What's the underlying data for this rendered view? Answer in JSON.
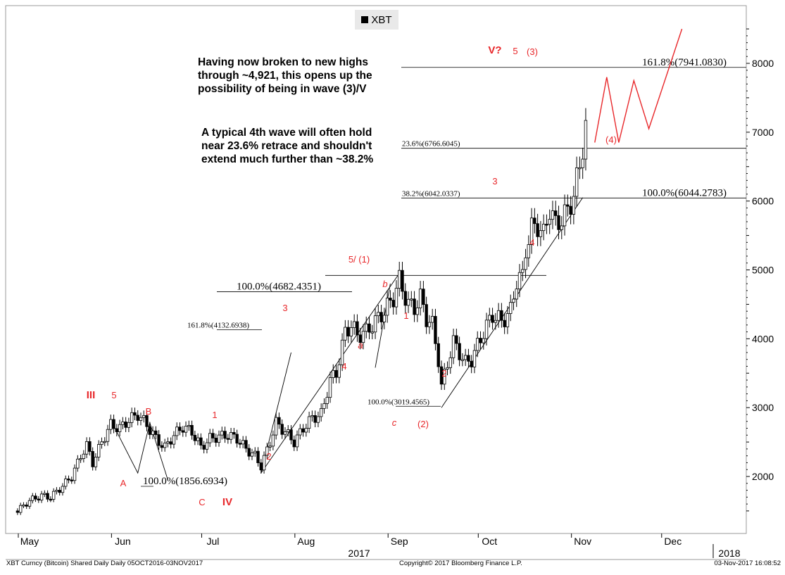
{
  "chart_data": {
    "type": "candlestick",
    "title": "",
    "legend": [
      "XBT"
    ],
    "legend_placement": "top-center",
    "ylim": [
      1300,
      8900
    ],
    "y_ticks": [
      "2000",
      "3000",
      "4000",
      "5000",
      "6000",
      "7000",
      "8000"
    ],
    "x_month_labels": [
      "May",
      "Jun",
      "Jul",
      "Aug",
      "Sep",
      "Oct",
      "Nov",
      "Dec"
    ],
    "x_year_labels": [
      "2017",
      "2018"
    ],
    "grid": false,
    "series": [
      {
        "name": "XBT",
        "close_path": [
          [
            "2017-04-27",
            1500
          ],
          [
            "2017-05-01",
            1650
          ],
          [
            "2017-05-05",
            1720
          ],
          [
            "2017-05-08",
            1700
          ],
          [
            "2017-05-11",
            1820
          ],
          [
            "2017-05-15",
            2000
          ],
          [
            "2017-05-18",
            2300
          ],
          [
            "2017-05-20",
            2450
          ],
          [
            "2017-05-22",
            2200
          ],
          [
            "2017-05-25",
            2500
          ],
          [
            "2017-05-28",
            2750
          ],
          [
            "2017-05-31",
            2700
          ],
          [
            "2017-06-03",
            2820
          ],
          [
            "2017-06-06",
            2900
          ],
          [
            "2017-06-09",
            2750
          ],
          [
            "2017-06-12",
            2550
          ],
          [
            "2017-06-15",
            2420
          ],
          [
            "2017-06-18",
            2600
          ],
          [
            "2017-06-21",
            2720
          ],
          [
            "2017-06-24",
            2650
          ],
          [
            "2017-06-27",
            2420
          ],
          [
            "2017-06-30",
            2550
          ],
          [
            "2017-07-03",
            2580
          ],
          [
            "2017-07-06",
            2600
          ],
          [
            "2017-07-09",
            2550
          ],
          [
            "2017-07-12",
            2400
          ],
          [
            "2017-07-15",
            2300
          ],
          [
            "2017-07-17",
            2150
          ],
          [
            "2017-07-20",
            2500
          ],
          [
            "2017-07-22",
            2780
          ],
          [
            "2017-07-25",
            2650
          ],
          [
            "2017-07-28",
            2500
          ],
          [
            "2017-07-31",
            2700
          ],
          [
            "2017-08-03",
            2850
          ],
          [
            "2017-08-06",
            2900
          ],
          [
            "2017-08-09",
            3400
          ],
          [
            "2017-08-11",
            3500
          ],
          [
            "2017-08-14",
            4100
          ],
          [
            "2017-08-16",
            4200
          ],
          [
            "2017-08-18",
            4050
          ],
          [
            "2017-08-21",
            4100
          ],
          [
            "2017-08-24",
            4250
          ],
          [
            "2017-08-27",
            4400
          ],
          [
            "2017-08-30",
            4600
          ],
          [
            "2017-09-01",
            4850
          ],
          [
            "2017-09-04",
            4500
          ],
          [
            "2017-09-06",
            4450
          ],
          [
            "2017-09-08",
            4600
          ],
          [
            "2017-09-10",
            4300
          ],
          [
            "2017-09-12",
            4200
          ],
          [
            "2017-09-14",
            3700
          ],
          [
            "2017-09-15",
            3300
          ],
          [
            "2017-09-17",
            3650
          ],
          [
            "2017-09-19",
            3950
          ],
          [
            "2017-09-21",
            3800
          ],
          [
            "2017-09-23",
            3650
          ],
          [
            "2017-09-25",
            3700
          ],
          [
            "2017-09-27",
            3900
          ],
          [
            "2017-09-29",
            4100
          ],
          [
            "2017-10-02",
            4350
          ],
          [
            "2017-10-05",
            4250
          ],
          [
            "2017-10-08",
            4400
          ],
          [
            "2017-10-10",
            4850
          ],
          [
            "2017-10-12",
            4900
          ],
          [
            "2017-10-13",
            5300
          ],
          [
            "2017-10-15",
            5600
          ],
          [
            "2017-10-17",
            5650
          ],
          [
            "2017-10-19",
            5500
          ],
          [
            "2017-10-21",
            5900
          ],
          [
            "2017-10-23",
            5650
          ],
          [
            "2017-10-25",
            5750
          ],
          [
            "2017-10-27",
            5850
          ],
          [
            "2017-10-29",
            6100
          ],
          [
            "2017-10-31",
            6500
          ],
          [
            "2017-11-02",
            7100
          ],
          [
            "2017-11-03",
            7350
          ]
        ]
      }
    ],
    "wave_paths": [
      [
        [
          "2017-05-28",
          2820
        ],
        [
          "2017-06-06",
          2050
        ],
        [
          "2017-06-10",
          2780
        ],
        [
          "2017-06-16",
          1950
        ]
      ],
      [
        [
          "2017-07-17",
          2050
        ],
        [
          "2017-07-27",
          3800
        ]
      ],
      [
        [
          "2017-07-17",
          2050
        ],
        [
          "2017-09-01",
          4950
        ]
      ],
      [
        [
          "2017-08-24",
          3580
        ],
        [
          "2017-08-29",
          4800
        ]
      ],
      [
        [
          "2017-09-15",
          3000
        ],
        [
          "2017-11-01",
          6050
        ]
      ],
      [
        [
          "2017-11-05",
          6850
        ],
        [
          "2017-11-09",
          7800
        ],
        [
          "2017-11-13",
          6850
        ],
        [
          "2017-11-18",
          7750
        ],
        [
          "2017-11-23",
          7050
        ],
        [
          "2017-12-04",
          8500
        ]
      ]
    ],
    "fib_lines": [
      {
        "label": "161.8%(7941.0830)",
        "value": 7941.083
      },
      {
        "label": "23.6%(6766.6045)",
        "value": 6766.6045
      },
      {
        "label": "38.2%(6042.0337)",
        "value": 6042.0337
      },
      {
        "label": "100.0%(6044.2783)",
        "value": 6044.2783
      },
      {
        "label": "",
        "value": 4920
      },
      {
        "label": "100.0%(4682.4351)",
        "value": 4682.4351
      },
      {
        "label": "161.8%(4132.6938)",
        "value": 4132.6938
      },
      {
        "label": "100.0%(3019.4565)",
        "value": 3019.4565
      },
      {
        "label": "100.0%(1856.6934)",
        "value": 1856.6934
      }
    ],
    "wave_labels": [
      "III",
      "5",
      "B",
      "A",
      "C",
      "IV",
      "1",
      "2",
      "3",
      "4",
      "5/ (1)",
      "b",
      "a",
      "1",
      "c",
      "(2)",
      "2",
      "3",
      "4",
      "V?",
      "5",
      "(3)",
      "(4)"
    ],
    "commentary": [
      [
        "Having now broken to new highs",
        "through ~4,921, this opens up the",
        "possibility of being in wave (3)/V"
      ],
      [
        "A typical 4th wave will often hold",
        "near 23.6% retrace and shouldn't",
        "extend much further than ~38.2%"
      ]
    ],
    "footer": {
      "left": "XBT Curncy (Bitcoin) Shared Daily  Daily 05OCT2016-03NOV2017",
      "center": "Copyright© 2017 Bloomberg Finance L.P.",
      "right": "03-Nov-2017 16:08:52"
    },
    "colors": {
      "wave_label": "#e8272a",
      "wave_label_bold": "#e8272a",
      "candle_up": "#ffffff",
      "candle_down": "#000000",
      "projection": "#e8272a"
    }
  }
}
